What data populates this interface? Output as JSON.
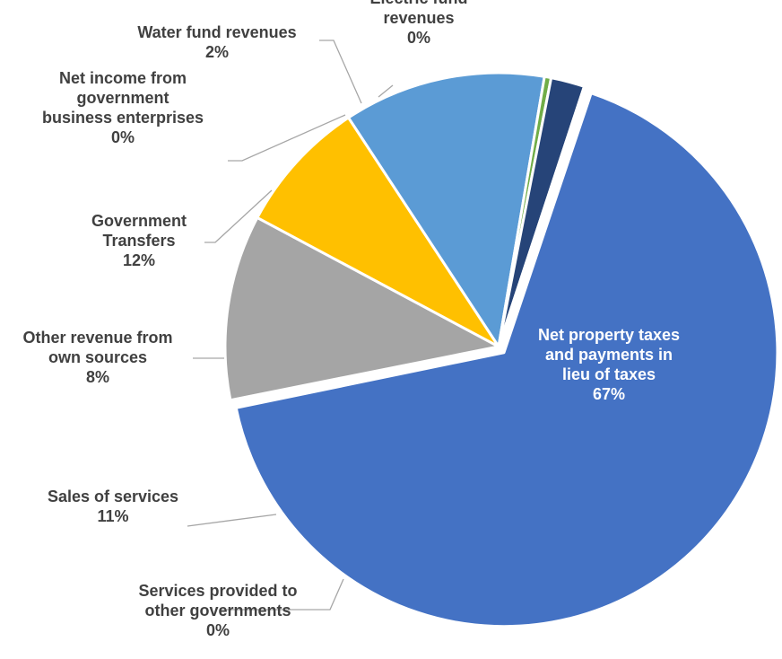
{
  "chart_data": {
    "type": "pie",
    "title": "",
    "start_angle_deg": 18.6,
    "direction": "clockwise",
    "slices": [
      {
        "label": "Net property taxes and payments in lieu of taxes",
        "lines": [
          "Net property taxes",
          "and payments in",
          "lieu of taxes"
        ],
        "value": 67,
        "pct_label": "67%",
        "color": "#4472C4",
        "explode": true,
        "label_inside": true
      },
      {
        "label": "Services provided to other governments",
        "lines": [
          "Services provided to",
          "other governments"
        ],
        "value": 0.1,
        "pct_label": "0%",
        "color": "#ED7D31"
      },
      {
        "label": "Sales of services",
        "lines": [
          "Sales of services"
        ],
        "value": 11,
        "pct_label": "11%",
        "color": "#A5A5A5"
      },
      {
        "label": "Other revenue from own sources",
        "lines": [
          "Other revenue from",
          "own sources"
        ],
        "value": 8,
        "pct_label": "8%",
        "color": "#FFC000"
      },
      {
        "label": "Government Transfers",
        "lines": [
          "Government",
          "Transfers"
        ],
        "value": 12,
        "pct_label": "12%",
        "color": "#5B9BD5"
      },
      {
        "label": "Net income from government business enterprises",
        "lines": [
          "Net income from",
          "government",
          "business enterprises"
        ],
        "value": 0.4,
        "pct_label": "0%",
        "color": "#70AD47"
      },
      {
        "label": "Water fund revenues",
        "lines": [
          "Water fund revenues"
        ],
        "value": 2,
        "pct_label": "2%",
        "color": "#264478"
      },
      {
        "label": "Electric fund revenues",
        "lines": [
          "Electric fund",
          "revenues"
        ],
        "value": 0.1,
        "pct_label": "0%",
        "color": "#9E480E"
      }
    ]
  }
}
